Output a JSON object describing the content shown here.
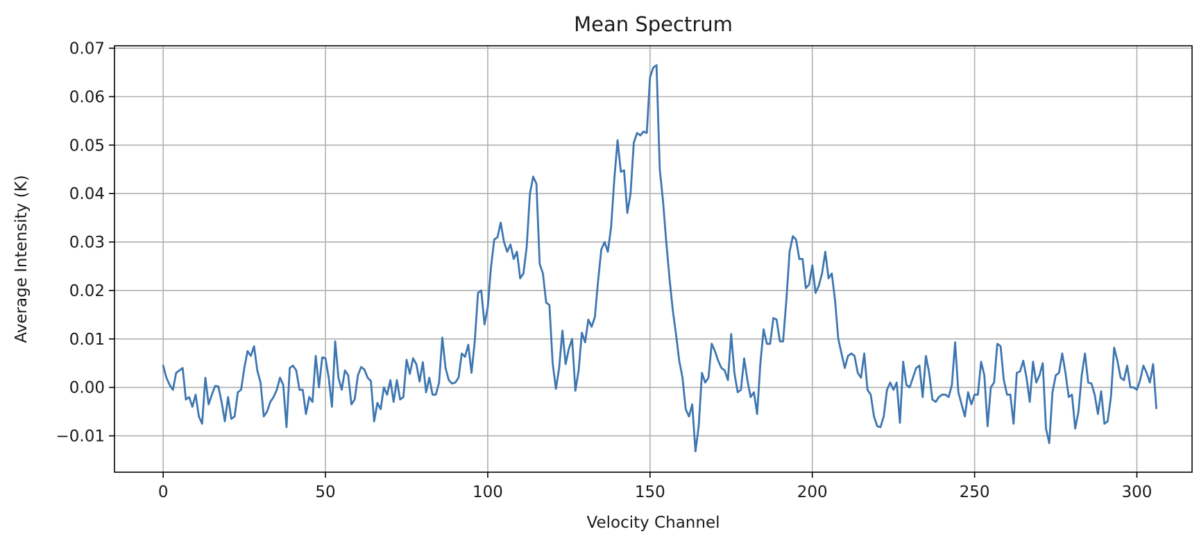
{
  "chart_data": {
    "type": "line",
    "title": "Mean Spectrum",
    "xlabel": "Velocity Channel",
    "ylabel": "Average Intensity (K)",
    "xlim": [
      -15,
      317
    ],
    "ylim": [
      -0.0175,
      0.0705
    ],
    "grid": true,
    "xticks": [
      0,
      50,
      100,
      150,
      200,
      250,
      300
    ],
    "xtick_labels": [
      "0",
      "50",
      "100",
      "150",
      "200",
      "250",
      "300"
    ],
    "yticks": [
      -0.01,
      0.0,
      0.01,
      0.02,
      0.03,
      0.04,
      0.05,
      0.06,
      0.07
    ],
    "ytick_labels": [
      "−0.01",
      "0.00",
      "0.01",
      "0.02",
      "0.03",
      "0.04",
      "0.05",
      "0.06",
      "0.07"
    ],
    "series": [
      {
        "color": "#3d76b0",
        "x_start": 0,
        "x_step": 1,
        "y": [
          0.0045,
          0.002,
          0.0005,
          -0.0005,
          0.003,
          0.0035,
          0.004,
          -0.0025,
          -0.002,
          -0.004,
          -0.0015,
          -0.006,
          -0.0075,
          0.002,
          -0.0035,
          -0.0015,
          0.0003,
          0.0002,
          -0.003,
          -0.007,
          -0.002,
          -0.0065,
          -0.006,
          -0.001,
          -0.0005,
          0.004,
          0.0075,
          0.0065,
          0.0085,
          0.0035,
          0.001,
          -0.006,
          -0.005,
          -0.003,
          -0.002,
          -0.0005,
          0.002,
          0.0005,
          -0.0082,
          0.004,
          0.0045,
          0.0035,
          -0.0005,
          -0.0005,
          -0.0055,
          -0.002,
          -0.003,
          0.0065,
          0.0,
          0.0062,
          0.006,
          0.002,
          -0.004,
          0.0095,
          0.002,
          -0.0005,
          0.0035,
          0.0025,
          -0.0035,
          -0.0025,
          0.0025,
          0.0042,
          0.0037,
          0.002,
          0.0013,
          -0.007,
          -0.0032,
          -0.0045,
          0.0,
          -0.0015,
          0.0015,
          -0.003,
          0.0015,
          -0.0025,
          -0.002,
          0.0057,
          0.0028,
          0.006,
          0.0048,
          0.0012,
          0.0052,
          -0.001,
          0.002,
          -0.0015,
          -0.0015,
          0.001,
          0.0103,
          0.004,
          0.0015,
          0.0008,
          0.001,
          0.002,
          0.007,
          0.0063,
          0.0088,
          0.003,
          0.0095,
          0.0195,
          0.02,
          0.013,
          0.0165,
          0.0248,
          0.0305,
          0.031,
          0.034,
          0.03,
          0.028,
          0.0295,
          0.0265,
          0.028,
          0.0225,
          0.0235,
          0.029,
          0.04,
          0.0435,
          0.042,
          0.0255,
          0.0235,
          0.0175,
          0.017,
          0.005,
          -0.0003,
          0.004,
          0.0117,
          0.0048,
          0.008,
          0.01,
          -0.0007,
          0.0035,
          0.0113,
          0.0093,
          0.014,
          0.0125,
          0.0145,
          0.022,
          0.0285,
          0.03,
          0.028,
          0.033,
          0.043,
          0.051,
          0.0445,
          0.0448,
          0.036,
          0.04,
          0.0505,
          0.0525,
          0.052,
          0.0528,
          0.0525,
          0.064,
          0.066,
          0.0665,
          0.045,
          0.0385,
          0.03,
          0.0225,
          0.016,
          0.011,
          0.0055,
          0.002,
          -0.0045,
          -0.006,
          -0.0035,
          -0.0132,
          -0.008,
          0.003,
          0.001,
          0.002,
          0.009,
          0.0075,
          0.0055,
          0.004,
          0.0035,
          0.0015,
          0.011,
          0.003,
          -0.001,
          -0.0005,
          0.006,
          0.0015,
          -0.002,
          -0.001,
          -0.0055,
          0.005,
          0.012,
          0.009,
          0.009,
          0.0143,
          0.014,
          0.0095,
          0.0095,
          0.018,
          0.028,
          0.0312,
          0.0305,
          0.0265,
          0.0265,
          0.0205,
          0.0212,
          0.0252,
          0.0195,
          0.021,
          0.0235,
          0.028,
          0.0225,
          0.0235,
          0.018,
          0.01,
          0.007,
          0.004,
          0.0065,
          0.007,
          0.0065,
          0.003,
          0.002,
          0.007,
          -0.0005,
          -0.0015,
          -0.006,
          -0.008,
          -0.0082,
          -0.006,
          -0.0005,
          0.001,
          -0.0005,
          0.001,
          -0.0073,
          0.0053,
          0.0005,
          0.0,
          0.002,
          0.004,
          0.0045,
          -0.002,
          0.0065,
          0.003,
          -0.0025,
          -0.003,
          -0.002,
          -0.0015,
          -0.0015,
          -0.002,
          0.0005,
          0.0093,
          -0.001,
          -0.0035,
          -0.006,
          -0.001,
          -0.0035,
          -0.0015,
          -0.0015,
          0.0053,
          0.0025,
          -0.008,
          0.0,
          0.001,
          0.009,
          0.0085,
          0.0015,
          -0.0015,
          -0.0015,
          -0.0075,
          0.003,
          0.0033,
          0.0055,
          0.002,
          -0.003,
          0.0053,
          0.001,
          0.0025,
          0.005,
          -0.0085,
          -0.0115,
          -0.001,
          0.0025,
          0.003,
          0.007,
          0.003,
          -0.002,
          -0.0015,
          -0.0085,
          -0.005,
          0.0025,
          0.007,
          0.001,
          0.0008,
          -0.0015,
          -0.0055,
          -0.0008,
          -0.0075,
          -0.007,
          -0.002,
          0.0082,
          0.0055,
          0.002,
          0.0015,
          0.0045,
          0.0,
          0.0,
          -0.0005,
          0.0015,
          0.0045,
          0.003,
          0.001,
          0.0048,
          -0.0043
        ]
      }
    ]
  }
}
